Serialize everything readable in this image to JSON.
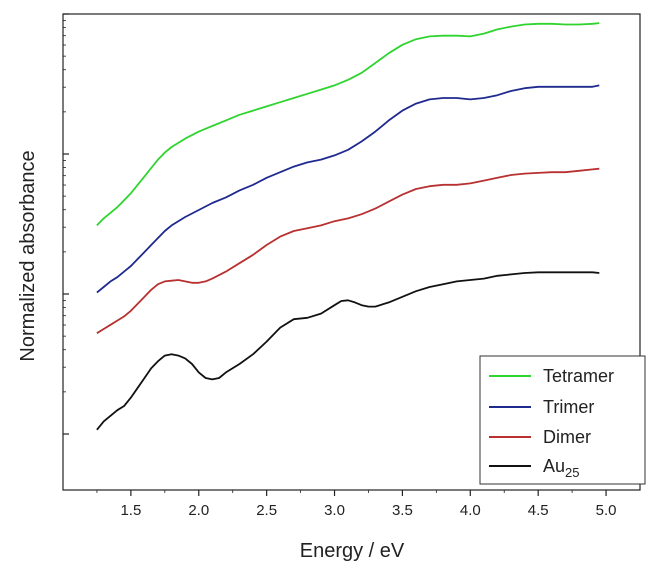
{
  "chart_data": {
    "type": "line",
    "title": "",
    "xlabel": "Energy / eV",
    "ylabel": "Normalized absorbance",
    "xlim": [
      1.0,
      5.25
    ],
    "xticks": [
      1.5,
      2.0,
      2.5,
      3.0,
      3.5,
      4.0,
      4.5,
      5.0
    ],
    "xtick_labels": [
      "1.5",
      "2.0",
      "2.5",
      "3.0",
      "3.5",
      "4.0",
      "4.5",
      "5.0"
    ],
    "y_scale": "log",
    "y_tick_labels_shown": false,
    "legend_position": "bottom-right",
    "series": [
      {
        "name": "Tetramer",
        "color": "#2fd42f",
        "x": [
          1.25,
          1.3,
          1.35,
          1.4,
          1.45,
          1.5,
          1.55,
          1.6,
          1.65,
          1.7,
          1.75,
          1.8,
          1.9,
          2.0,
          2.1,
          2.2,
          2.3,
          2.4,
          2.5,
          2.6,
          2.7,
          2.8,
          2.9,
          3.0,
          3.1,
          3.2,
          3.3,
          3.4,
          3.5,
          3.6,
          3.7,
          3.8,
          3.9,
          4.0,
          4.1,
          4.2,
          4.3,
          4.4,
          4.5,
          4.6,
          4.7,
          4.8,
          4.9,
          4.95
        ],
        "y": [
          0.51,
          0.46,
          0.42,
          0.38,
          0.33,
          0.28,
          0.22,
          0.16,
          0.1,
          0.04,
          -0.01,
          -0.05,
          -0.11,
          -0.16,
          -0.2,
          -0.24,
          -0.28,
          -0.31,
          -0.34,
          -0.37,
          -0.4,
          -0.43,
          -0.46,
          -0.49,
          -0.53,
          -0.58,
          -0.65,
          -0.72,
          -0.78,
          -0.82,
          -0.84,
          -0.845,
          -0.845,
          -0.84,
          -0.86,
          -0.89,
          -0.91,
          -0.925,
          -0.93,
          -0.93,
          -0.925,
          -0.925,
          -0.93,
          -0.935
        ]
      },
      {
        "name": "Trimer",
        "color": "#1f2a8e",
        "x": [
          1.25,
          1.3,
          1.35,
          1.4,
          1.45,
          1.5,
          1.55,
          1.6,
          1.65,
          1.7,
          1.75,
          1.8,
          1.9,
          2.0,
          2.1,
          2.2,
          2.3,
          2.4,
          2.5,
          2.6,
          2.7,
          2.8,
          2.9,
          3.0,
          3.1,
          3.2,
          3.3,
          3.4,
          3.5,
          3.6,
          3.7,
          3.8,
          3.9,
          4.0,
          4.1,
          4.2,
          4.3,
          4.4,
          4.5,
          4.6,
          4.7,
          4.8,
          4.9,
          4.95
        ],
        "y": [
          0.99,
          0.95,
          0.91,
          0.88,
          0.84,
          0.8,
          0.75,
          0.7,
          0.65,
          0.6,
          0.55,
          0.51,
          0.45,
          0.4,
          0.35,
          0.31,
          0.26,
          0.22,
          0.17,
          0.13,
          0.09,
          0.06,
          0.04,
          0.01,
          -0.03,
          -0.09,
          -0.16,
          -0.24,
          -0.31,
          -0.36,
          -0.39,
          -0.4,
          -0.4,
          -0.39,
          -0.4,
          -0.42,
          -0.45,
          -0.47,
          -0.48,
          -0.48,
          -0.48,
          -0.48,
          -0.48,
          -0.49
        ]
      },
      {
        "name": "Dimer",
        "color": "#b83030",
        "x": [
          1.25,
          1.3,
          1.35,
          1.4,
          1.45,
          1.5,
          1.55,
          1.6,
          1.65,
          1.7,
          1.75,
          1.8,
          1.85,
          1.9,
          1.95,
          2.0,
          2.05,
          2.1,
          2.2,
          2.3,
          2.4,
          2.5,
          2.6,
          2.7,
          2.8,
          2.9,
          3.0,
          3.1,
          3.2,
          3.3,
          3.4,
          3.5,
          3.6,
          3.7,
          3.8,
          3.9,
          4.0,
          4.1,
          4.2,
          4.3,
          4.4,
          4.5,
          4.6,
          4.7,
          4.8,
          4.9,
          4.95
        ],
        "y": [
          1.28,
          1.25,
          1.22,
          1.19,
          1.16,
          1.12,
          1.07,
          1.02,
          0.97,
          0.93,
          0.91,
          0.905,
          0.9,
          0.91,
          0.92,
          0.92,
          0.91,
          0.89,
          0.84,
          0.78,
          0.72,
          0.65,
          0.59,
          0.55,
          0.53,
          0.51,
          0.48,
          0.46,
          0.43,
          0.39,
          0.34,
          0.29,
          0.25,
          0.23,
          0.22,
          0.22,
          0.21,
          0.19,
          0.17,
          0.15,
          0.14,
          0.135,
          0.13,
          0.13,
          0.12,
          0.11,
          0.105
        ]
      },
      {
        "name": "Au25",
        "color": "#111111",
        "x": [
          1.25,
          1.3,
          1.35,
          1.4,
          1.45,
          1.5,
          1.55,
          1.6,
          1.65,
          1.7,
          1.75,
          1.8,
          1.85,
          1.9,
          1.95,
          2.0,
          2.05,
          2.1,
          2.15,
          2.2,
          2.3,
          2.4,
          2.5,
          2.6,
          2.7,
          2.8,
          2.9,
          3.0,
          3.05,
          3.1,
          3.15,
          3.2,
          3.25,
          3.3,
          3.4,
          3.5,
          3.6,
          3.7,
          3.8,
          3.9,
          4.0,
          4.1,
          4.2,
          4.3,
          4.4,
          4.5,
          4.6,
          4.7,
          4.8,
          4.9,
          4.95
        ],
        "y": [
          1.97,
          1.91,
          1.87,
          1.83,
          1.8,
          1.74,
          1.67,
          1.6,
          1.53,
          1.48,
          1.44,
          1.43,
          1.44,
          1.46,
          1.5,
          1.56,
          1.6,
          1.61,
          1.6,
          1.56,
          1.5,
          1.43,
          1.34,
          1.24,
          1.18,
          1.17,
          1.14,
          1.08,
          1.05,
          1.045,
          1.06,
          1.08,
          1.09,
          1.09,
          1.06,
          1.02,
          0.98,
          0.95,
          0.93,
          0.91,
          0.9,
          0.89,
          0.87,
          0.86,
          0.85,
          0.845,
          0.845,
          0.845,
          0.845,
          0.845,
          0.85
        ]
      }
    ]
  },
  "legend": {
    "items": [
      {
        "label": "Tetramer",
        "color": "#2fd42f"
      },
      {
        "label": "Trimer",
        "color": "#1f2a8e"
      },
      {
        "label": "Dimer",
        "color": "#b83030"
      },
      {
        "label": "Au",
        "sub": "25",
        "color": "#111111"
      }
    ]
  }
}
